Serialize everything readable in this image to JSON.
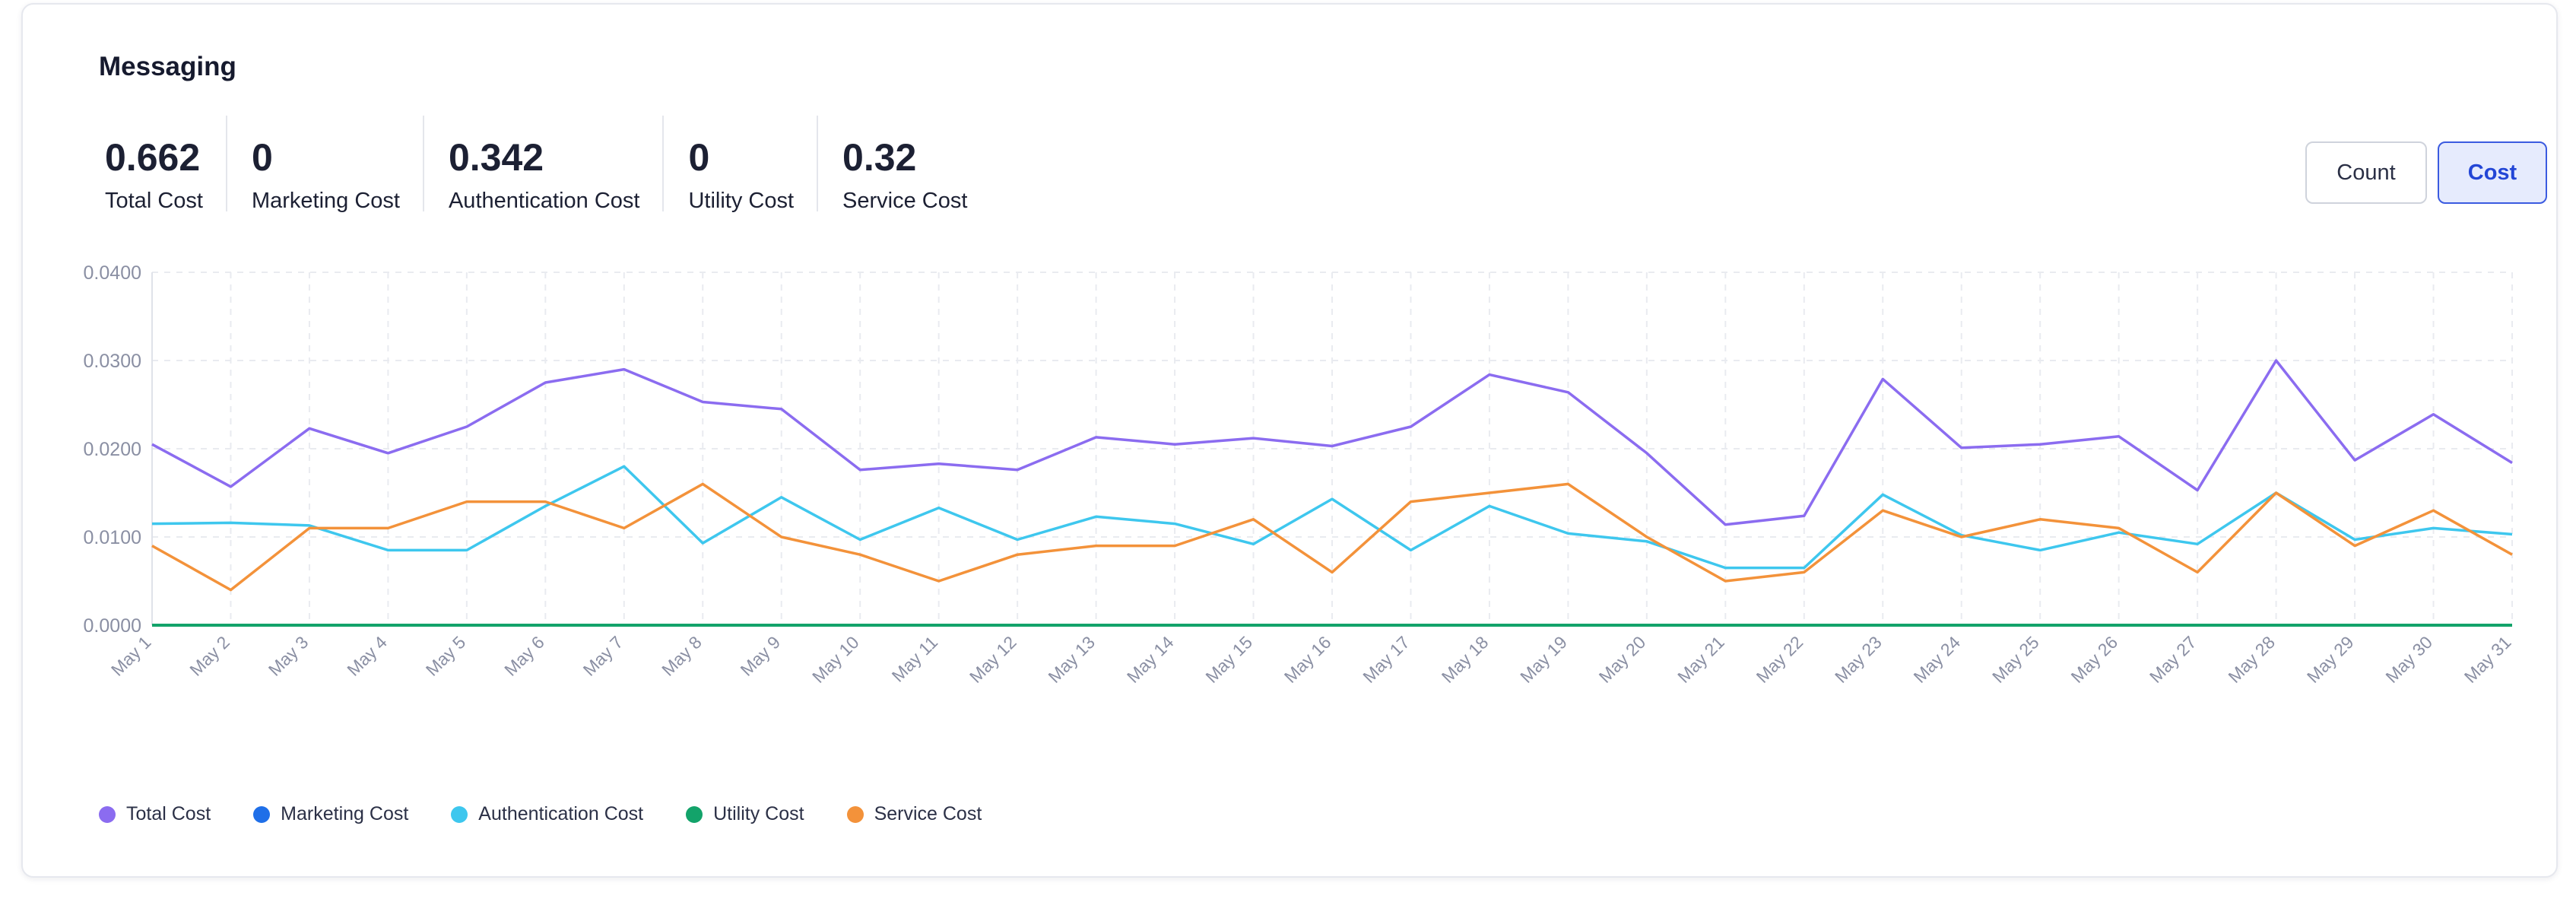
{
  "header": {
    "title": "Messaging"
  },
  "stats": [
    {
      "value": "0.662",
      "label": "Total Cost"
    },
    {
      "value": "0",
      "label": "Marketing Cost"
    },
    {
      "value": "0.342",
      "label": "Authentication Cost"
    },
    {
      "value": "0",
      "label": "Utility Cost"
    },
    {
      "value": "0.32",
      "label": "Service Cost"
    }
  ],
  "toggle": {
    "count_label": "Count",
    "cost_label": "Cost",
    "selected": "Cost"
  },
  "chart_data": {
    "type": "line",
    "title": "",
    "xlabel": "",
    "ylabel": "",
    "ylim": [
      0,
      0.04
    ],
    "yticks": [
      "0.0000",
      "0.0100",
      "0.0200",
      "0.0300",
      "0.0400"
    ],
    "grid": true,
    "legend_position": "bottom-left",
    "categories": [
      "May 1",
      "May 2",
      "May 3",
      "May 4",
      "May 5",
      "May 6",
      "May 7",
      "May 8",
      "May 9",
      "May 10",
      "May 11",
      "May 12",
      "May 13",
      "May 14",
      "May 15",
      "May 16",
      "May 17",
      "May 18",
      "May 19",
      "May 20",
      "May 21",
      "May 22",
      "May 23",
      "May 24",
      "May 25",
      "May 26",
      "May 27",
      "May 28",
      "May 29",
      "May 30",
      "May 31"
    ],
    "series": [
      {
        "name": "Total Cost",
        "color": "#8b6cf0",
        "values": [
          0.0205,
          0.0157,
          0.0223,
          0.0195,
          0.0225,
          0.0275,
          0.029,
          0.0253,
          0.0245,
          0.0176,
          0.0183,
          0.0176,
          0.0213,
          0.0205,
          0.0212,
          0.0203,
          0.0225,
          0.0284,
          0.0264,
          0.0195,
          0.0114,
          0.0124,
          0.0279,
          0.0201,
          0.0205,
          0.0214,
          0.0153,
          0.03,
          0.0187,
          0.0239,
          0.0184
        ]
      },
      {
        "name": "Marketing Cost",
        "color": "#1f6fe8",
        "values": [
          0,
          0,
          0,
          0,
          0,
          0,
          0,
          0,
          0,
          0,
          0,
          0,
          0,
          0,
          0,
          0,
          0,
          0,
          0,
          0,
          0,
          0,
          0,
          0,
          0,
          0,
          0,
          0,
          0,
          0,
          0
        ]
      },
      {
        "name": "Authentication Cost",
        "color": "#3ec7ee",
        "values": [
          0.0115,
          0.0116,
          0.0113,
          0.0085,
          0.0085,
          0.0135,
          0.018,
          0.0093,
          0.0145,
          0.0097,
          0.0133,
          0.0097,
          0.0123,
          0.0115,
          0.0092,
          0.0143,
          0.0085,
          0.0135,
          0.0104,
          0.0095,
          0.0065,
          0.0065,
          0.0148,
          0.0102,
          0.0085,
          0.0105,
          0.0092,
          0.015,
          0.0097,
          0.011,
          0.0103
        ]
      },
      {
        "name": "Utility Cost",
        "color": "#13a36a",
        "values": [
          0,
          0,
          0,
          0,
          0,
          0,
          0,
          0,
          0,
          0,
          0,
          0,
          0,
          0,
          0,
          0,
          0,
          0,
          0,
          0,
          0,
          0,
          0,
          0,
          0,
          0,
          0,
          0,
          0,
          0,
          0
        ]
      },
      {
        "name": "Service Cost",
        "color": "#f3923a",
        "values": [
          0.009,
          0.004,
          0.011,
          0.011,
          0.014,
          0.014,
          0.011,
          0.016,
          0.01,
          0.008,
          0.005,
          0.008,
          0.009,
          0.009,
          0.012,
          0.006,
          0.014,
          0.015,
          0.016,
          0.01,
          0.005,
          0.006,
          0.013,
          0.01,
          0.012,
          0.011,
          0.006,
          0.015,
          0.009,
          0.013,
          0.008
        ]
      }
    ]
  }
}
